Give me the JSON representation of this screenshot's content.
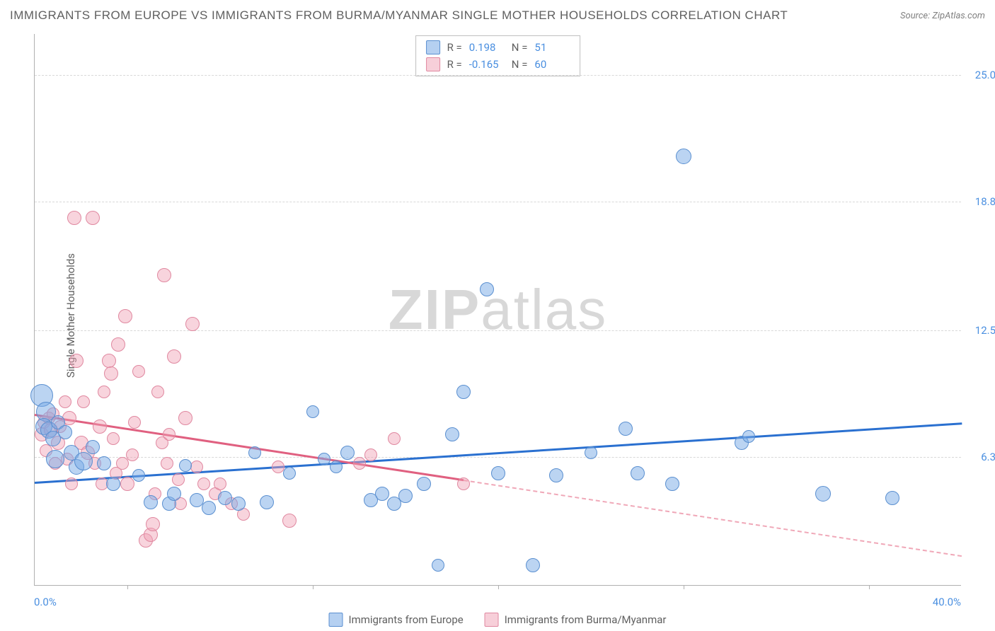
{
  "title": "IMMIGRANTS FROM EUROPE VS IMMIGRANTS FROM BURMA/MYANMAR SINGLE MOTHER HOUSEHOLDS CORRELATION CHART",
  "source": "Source: ZipAtlas.com",
  "y_axis_label": "Single Mother Households",
  "watermark_a": "ZIP",
  "watermark_b": "atlas",
  "chart": {
    "type": "scatter",
    "background_color": "#ffffff",
    "grid_color": "#d8d8d8",
    "axis_color": "#b0b0b0",
    "label_color": "#4a8fe0",
    "text_color": "#606060",
    "xlim": [
      0,
      40
    ],
    "ylim": [
      0,
      27
    ],
    "y_ticks": [
      {
        "v": 6.3,
        "label": "6.3%"
      },
      {
        "v": 12.5,
        "label": "12.5%"
      },
      {
        "v": 18.8,
        "label": "18.8%"
      },
      {
        "v": 25.0,
        "label": "25.0%"
      }
    ],
    "x_tick_positions": [
      4,
      12,
      20,
      28,
      36
    ],
    "x_start_label": "0.0%",
    "x_end_label": "40.0%",
    "series": [
      {
        "name": "Immigrants from Europe",
        "color_fill": "rgba(120,170,230,0.5)",
        "color_stroke": "#5a8fd0",
        "trend_color": "#2a70d0",
        "R": "0.198",
        "N": "51",
        "trend": {
          "x1": 0,
          "y1": 5.1,
          "x2": 40,
          "y2": 8.0
        },
        "points": [
          {
            "x": 0.3,
            "y": 9.3,
            "r": 16
          },
          {
            "x": 0.5,
            "y": 8.5,
            "r": 14
          },
          {
            "x": 0.4,
            "y": 7.8,
            "r": 12
          },
          {
            "x": 0.6,
            "y": 7.6,
            "r": 12
          },
          {
            "x": 0.8,
            "y": 7.2,
            "r": 11
          },
          {
            "x": 1.0,
            "y": 8.0,
            "r": 10
          },
          {
            "x": 1.3,
            "y": 7.5,
            "r": 10
          },
          {
            "x": 0.9,
            "y": 6.2,
            "r": 13
          },
          {
            "x": 1.6,
            "y": 6.5,
            "r": 11
          },
          {
            "x": 1.8,
            "y": 5.8,
            "r": 11
          },
          {
            "x": 2.1,
            "y": 6.1,
            "r": 13
          },
          {
            "x": 2.5,
            "y": 6.8,
            "r": 10
          },
          {
            "x": 3.0,
            "y": 6.0,
            "r": 10
          },
          {
            "x": 3.4,
            "y": 5.0,
            "r": 10
          },
          {
            "x": 4.5,
            "y": 5.4,
            "r": 9
          },
          {
            "x": 5.0,
            "y": 4.1,
            "r": 10
          },
          {
            "x": 5.8,
            "y": 4.0,
            "r": 10
          },
          {
            "x": 6.0,
            "y": 4.5,
            "r": 10
          },
          {
            "x": 6.5,
            "y": 5.9,
            "r": 9
          },
          {
            "x": 7.0,
            "y": 4.2,
            "r": 10
          },
          {
            "x": 7.5,
            "y": 3.8,
            "r": 10
          },
          {
            "x": 8.2,
            "y": 4.3,
            "r": 10
          },
          {
            "x": 8.8,
            "y": 4.0,
            "r": 10
          },
          {
            "x": 9.5,
            "y": 6.5,
            "r": 9
          },
          {
            "x": 10.0,
            "y": 4.1,
            "r": 10
          },
          {
            "x": 11.0,
            "y": 5.5,
            "r": 9
          },
          {
            "x": 12.0,
            "y": 8.5,
            "r": 9
          },
          {
            "x": 12.5,
            "y": 6.2,
            "r": 9
          },
          {
            "x": 13.0,
            "y": 5.8,
            "r": 9
          },
          {
            "x": 13.5,
            "y": 6.5,
            "r": 10
          },
          {
            "x": 14.5,
            "y": 4.2,
            "r": 10
          },
          {
            "x": 15.0,
            "y": 4.5,
            "r": 10
          },
          {
            "x": 15.5,
            "y": 4.0,
            "r": 10
          },
          {
            "x": 16.0,
            "y": 4.4,
            "r": 10
          },
          {
            "x": 16.8,
            "y": 5.0,
            "r": 10
          },
          {
            "x": 17.4,
            "y": 1.0,
            "r": 9
          },
          {
            "x": 18.0,
            "y": 7.4,
            "r": 10
          },
          {
            "x": 18.5,
            "y": 9.5,
            "r": 10
          },
          {
            "x": 19.5,
            "y": 14.5,
            "r": 10
          },
          {
            "x": 20.0,
            "y": 5.5,
            "r": 10
          },
          {
            "x": 21.5,
            "y": 1.0,
            "r": 10
          },
          {
            "x": 22.5,
            "y": 5.4,
            "r": 10
          },
          {
            "x": 24.0,
            "y": 6.5,
            "r": 9
          },
          {
            "x": 25.5,
            "y": 7.7,
            "r": 10
          },
          {
            "x": 26.0,
            "y": 5.5,
            "r": 10
          },
          {
            "x": 27.5,
            "y": 5.0,
            "r": 10
          },
          {
            "x": 28.0,
            "y": 21.0,
            "r": 11
          },
          {
            "x": 30.5,
            "y": 7.0,
            "r": 10
          },
          {
            "x": 30.8,
            "y": 7.3,
            "r": 9
          },
          {
            "x": 34.0,
            "y": 4.5,
            "r": 11
          },
          {
            "x": 37.0,
            "y": 4.3,
            "r": 10
          }
        ]
      },
      {
        "name": "Immigrants from Burma/Myanmar",
        "color_fill": "rgba(240,160,180,0.45)",
        "color_stroke": "#e088a0",
        "trend_color": "#e06080",
        "R": "-0.165",
        "N": "60",
        "trend": {
          "x1": 0,
          "y1": 8.4,
          "x2": 40,
          "y2": 1.5
        },
        "trend_solid_until_x": 18.5,
        "points": [
          {
            "x": 0.3,
            "y": 7.4,
            "r": 10
          },
          {
            "x": 0.4,
            "y": 8.0,
            "r": 9
          },
          {
            "x": 0.5,
            "y": 6.6,
            "r": 9
          },
          {
            "x": 0.6,
            "y": 8.2,
            "r": 9
          },
          {
            "x": 0.7,
            "y": 7.6,
            "r": 10
          },
          {
            "x": 0.8,
            "y": 8.4,
            "r": 9
          },
          {
            "x": 0.9,
            "y": 6.0,
            "r": 9
          },
          {
            "x": 1.0,
            "y": 7.0,
            "r": 10
          },
          {
            "x": 1.1,
            "y": 7.8,
            "r": 9
          },
          {
            "x": 1.3,
            "y": 9.0,
            "r": 9
          },
          {
            "x": 1.4,
            "y": 6.2,
            "r": 9
          },
          {
            "x": 1.5,
            "y": 8.2,
            "r": 10
          },
          {
            "x": 1.6,
            "y": 5.0,
            "r": 9
          },
          {
            "x": 1.8,
            "y": 11.0,
            "r": 10
          },
          {
            "x": 2.0,
            "y": 7.0,
            "r": 10
          },
          {
            "x": 2.1,
            "y": 9.0,
            "r": 9
          },
          {
            "x": 2.3,
            "y": 6.5,
            "r": 10
          },
          {
            "x": 1.7,
            "y": 18.0,
            "r": 10
          },
          {
            "x": 2.6,
            "y": 6.0,
            "r": 9
          },
          {
            "x": 2.8,
            "y": 7.8,
            "r": 10
          },
          {
            "x": 2.9,
            "y": 5.0,
            "r": 9
          },
          {
            "x": 2.5,
            "y": 18.0,
            "r": 10
          },
          {
            "x": 3.0,
            "y": 9.5,
            "r": 9
          },
          {
            "x": 3.2,
            "y": 11.0,
            "r": 10
          },
          {
            "x": 3.3,
            "y": 10.4,
            "r": 10
          },
          {
            "x": 3.4,
            "y": 7.2,
            "r": 9
          },
          {
            "x": 3.5,
            "y": 5.5,
            "r": 9
          },
          {
            "x": 3.6,
            "y": 11.8,
            "r": 10
          },
          {
            "x": 3.8,
            "y": 6.0,
            "r": 9
          },
          {
            "x": 3.9,
            "y": 13.2,
            "r": 10
          },
          {
            "x": 4.0,
            "y": 5.0,
            "r": 10
          },
          {
            "x": 4.2,
            "y": 6.4,
            "r": 9
          },
          {
            "x": 4.3,
            "y": 8.0,
            "r": 9
          },
          {
            "x": 4.5,
            "y": 10.5,
            "r": 9
          },
          {
            "x": 4.8,
            "y": 2.2,
            "r": 10
          },
          {
            "x": 5.0,
            "y": 2.5,
            "r": 10
          },
          {
            "x": 5.1,
            "y": 3.0,
            "r": 10
          },
          {
            "x": 5.2,
            "y": 4.5,
            "r": 9
          },
          {
            "x": 5.3,
            "y": 9.5,
            "r": 9
          },
          {
            "x": 5.5,
            "y": 7.0,
            "r": 9
          },
          {
            "x": 5.6,
            "y": 15.2,
            "r": 10
          },
          {
            "x": 5.7,
            "y": 6.0,
            "r": 9
          },
          {
            "x": 5.8,
            "y": 7.4,
            "r": 9
          },
          {
            "x": 6.0,
            "y": 11.2,
            "r": 10
          },
          {
            "x": 6.2,
            "y": 5.2,
            "r": 9
          },
          {
            "x": 6.3,
            "y": 4.0,
            "r": 9
          },
          {
            "x": 6.5,
            "y": 8.2,
            "r": 10
          },
          {
            "x": 6.8,
            "y": 12.8,
            "r": 10
          },
          {
            "x": 7.0,
            "y": 5.8,
            "r": 9
          },
          {
            "x": 7.3,
            "y": 5.0,
            "r": 9
          },
          {
            "x": 7.8,
            "y": 4.5,
            "r": 9
          },
          {
            "x": 8.0,
            "y": 5.0,
            "r": 9
          },
          {
            "x": 8.5,
            "y": 4.0,
            "r": 9
          },
          {
            "x": 9.0,
            "y": 3.5,
            "r": 9
          },
          {
            "x": 10.5,
            "y": 5.8,
            "r": 9
          },
          {
            "x": 11.0,
            "y": 3.2,
            "r": 10
          },
          {
            "x": 14.0,
            "y": 6.0,
            "r": 9
          },
          {
            "x": 14.5,
            "y": 6.4,
            "r": 9
          },
          {
            "x": 15.5,
            "y": 7.2,
            "r": 9
          },
          {
            "x": 18.5,
            "y": 5.0,
            "r": 9
          }
        ]
      }
    ]
  },
  "legend": {
    "series1": "Immigrants from Europe",
    "series2": "Immigrants from Burma/Myanmar"
  },
  "stats_labels": {
    "R": "R =",
    "N": "N ="
  }
}
